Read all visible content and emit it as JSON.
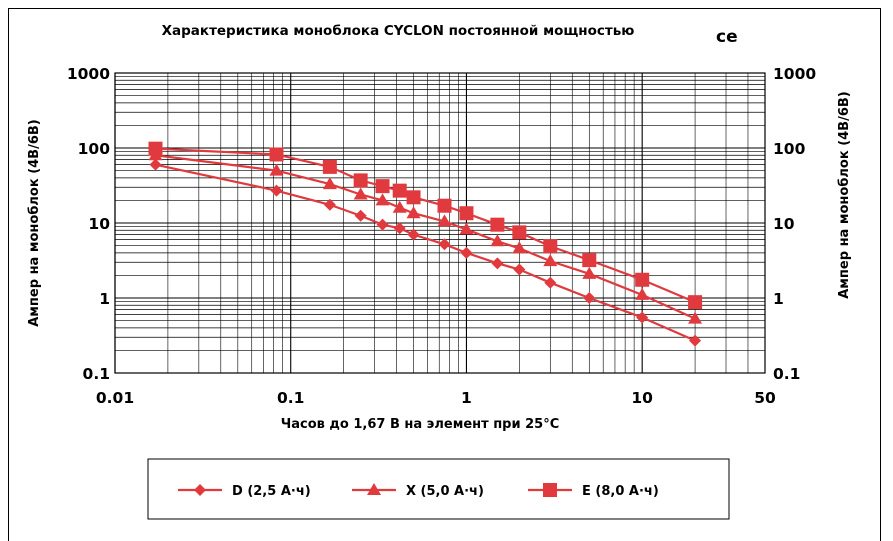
{
  "chart_data": {
    "type": "line",
    "title": "Характеристика моноблока CYCLON постоянной мощностью",
    "title_fragment": "ce",
    "xlabel": "Часов до 1,67 В на элемент при 25°C",
    "ylabel": "Ампер на моноблок (4В/6В)",
    "ylabel_right": "Ампер на моноблок (4В/6В)",
    "x_scale": "log",
    "y_scale": "log",
    "xlim": [
      0.01,
      50
    ],
    "ylim": [
      0.1,
      1000
    ],
    "x_ticks": [
      {
        "value": 0.01,
        "label": "0.01"
      },
      {
        "value": 0.1,
        "label": "0.1"
      },
      {
        "value": 1,
        "label": "1"
      },
      {
        "value": 10,
        "label": "10"
      },
      {
        "value": 50,
        "label": "50"
      }
    ],
    "y_ticks": [
      {
        "value": 1000,
        "label": "1000"
      },
      {
        "value": 100,
        "label": "100"
      },
      {
        "value": 10,
        "label": "10"
      },
      {
        "value": 1,
        "label": "1"
      },
      {
        "value": 0.1,
        "label": "0.1"
      }
    ],
    "grid": true,
    "legend_position": "bottom",
    "series": [
      {
        "name": "D (2,5 А·ч)",
        "marker": "diamond",
        "color": "#e03a3e",
        "points": [
          [
            0.017,
            60
          ],
          [
            0.083,
            27
          ],
          [
            0.167,
            17.5
          ],
          [
            0.25,
            12.5
          ],
          [
            0.333,
            9.5
          ],
          [
            0.417,
            8.5
          ],
          [
            0.5,
            7
          ],
          [
            0.75,
            5.2
          ],
          [
            1,
            4
          ],
          [
            1.5,
            2.9
          ],
          [
            2,
            2.4
          ],
          [
            3,
            1.6
          ],
          [
            5,
            1.0
          ],
          [
            10,
            0.55
          ],
          [
            20,
            0.27
          ]
        ]
      },
      {
        "name": "X (5,0 А·ч)",
        "marker": "triangle",
        "color": "#e03a3e",
        "points": [
          [
            0.017,
            80
          ],
          [
            0.083,
            50
          ],
          [
            0.167,
            33
          ],
          [
            0.25,
            24
          ],
          [
            0.333,
            20
          ],
          [
            0.417,
            16
          ],
          [
            0.5,
            13.5
          ],
          [
            0.75,
            10.5
          ],
          [
            1,
            8.2
          ],
          [
            1.5,
            5.7
          ],
          [
            2,
            4.6
          ],
          [
            3,
            3.1
          ],
          [
            5,
            2.1
          ],
          [
            10,
            1.1
          ],
          [
            20,
            0.53
          ]
        ]
      },
      {
        "name": "E (8,0 А·ч)",
        "marker": "square",
        "color": "#e03a3e",
        "points": [
          [
            0.017,
            98
          ],
          [
            0.083,
            82
          ],
          [
            0.167,
            56
          ],
          [
            0.25,
            37
          ],
          [
            0.333,
            31
          ],
          [
            0.417,
            27
          ],
          [
            0.5,
            22
          ],
          [
            0.75,
            17
          ],
          [
            1,
            13.5
          ],
          [
            1.5,
            9.5
          ],
          [
            2,
            7.5
          ],
          [
            3,
            4.9
          ],
          [
            5,
            3.2
          ],
          [
            10,
            1.75
          ],
          [
            20,
            0.88
          ]
        ]
      }
    ]
  }
}
